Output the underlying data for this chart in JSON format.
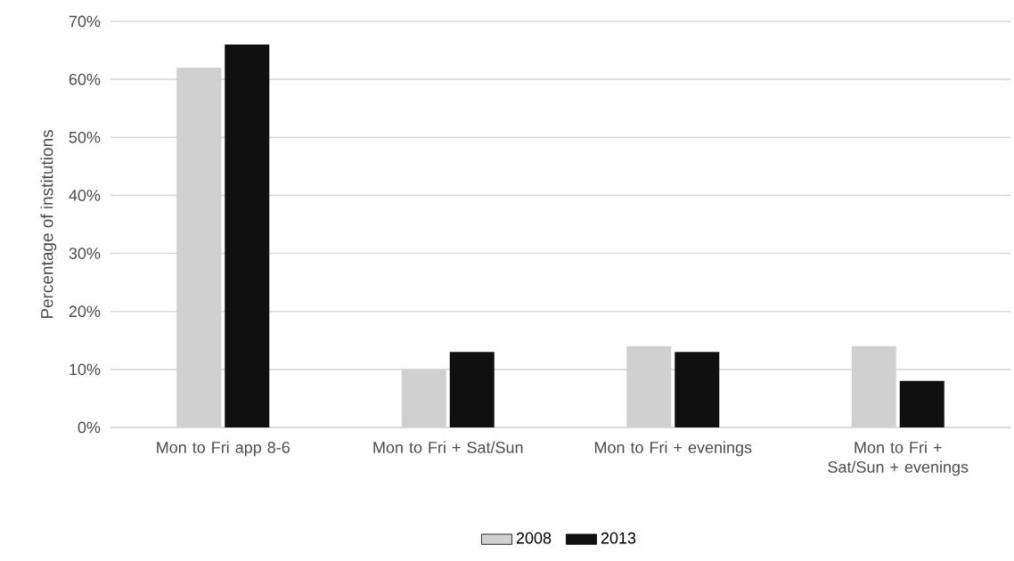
{
  "chart_data": {
    "type": "bar",
    "ylabel": "Percentage of institutions",
    "categories": [
      "Mon to Fri app 8-6",
      "Mon to Fri + Sat/Sun",
      "Mon to Fri + evenings",
      "Mon to Fri + Sat/Sun + evenings"
    ],
    "series": [
      {
        "name": "2008",
        "color": "#d0d0d0",
        "values": [
          62,
          10,
          14,
          14
        ]
      },
      {
        "name": "2013",
        "color": "#101010",
        "values": [
          66,
          13,
          13,
          8
        ]
      }
    ],
    "ylim": [
      0,
      70
    ],
    "yticks": [
      {
        "value": 0,
        "label": "0%"
      },
      {
        "value": 10,
        "label": "10%"
      },
      {
        "value": 20,
        "label": "20%"
      },
      {
        "value": 30,
        "label": "30%"
      },
      {
        "value": 40,
        "label": "40%"
      },
      {
        "value": 50,
        "label": "50%"
      },
      {
        "value": 60,
        "label": "60%"
      },
      {
        "value": 70,
        "label": "70%"
      }
    ],
    "grid": "y",
    "legend": "bottom"
  }
}
